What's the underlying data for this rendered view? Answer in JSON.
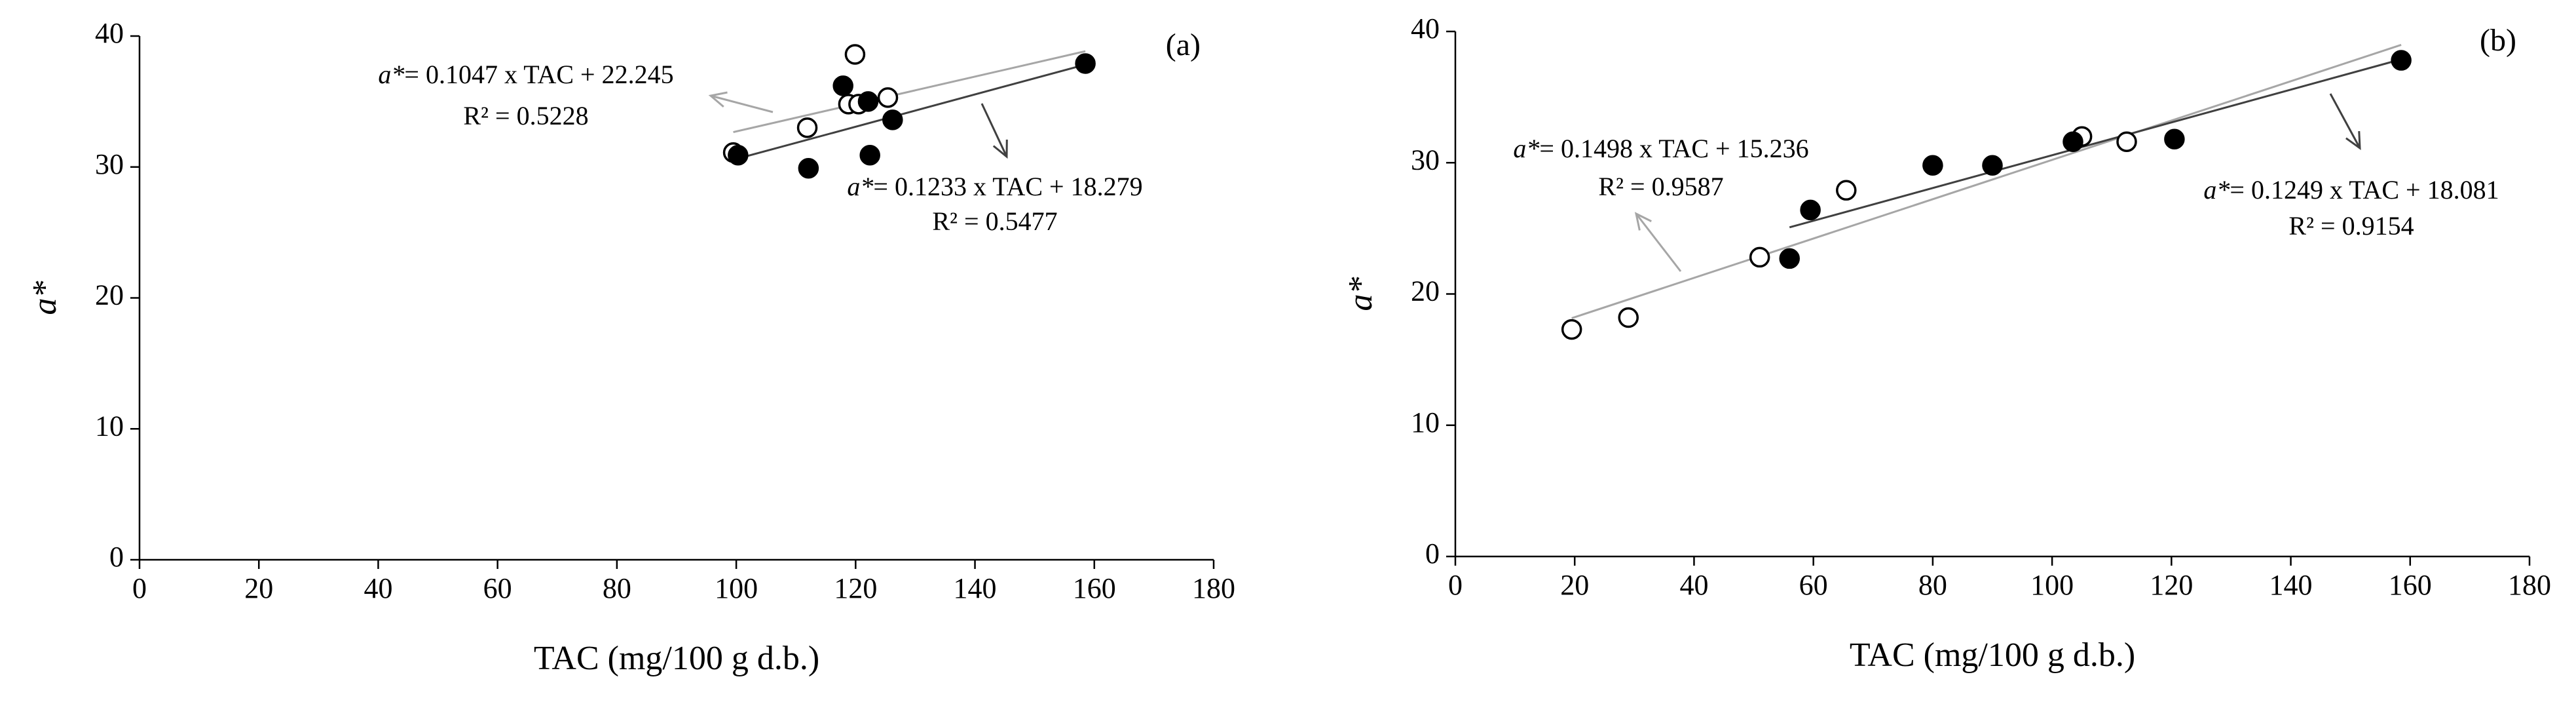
{
  "chart_data": [
    {
      "type": "scatter",
      "panel_label": "(a)",
      "xlabel": "TAC (mg/100 g d.b.)",
      "ylabel": "a*",
      "xlim": [
        0,
        180
      ],
      "xticks": [
        0,
        20,
        40,
        60,
        80,
        100,
        120,
        140,
        160,
        180
      ],
      "ylim": [
        0,
        40
      ],
      "yticks": [
        0,
        10,
        20,
        30,
        40
      ],
      "series": [
        {
          "marker": "open",
          "color": "#000000",
          "fit_color": "#a6a6a6",
          "x": [
            99.5,
            111.9,
            119.9,
            118.8,
            120.5,
            125.4
          ],
          "values": [
            31.1,
            33.0,
            38.6,
            34.8,
            34.8,
            35.3
          ],
          "fit": {
            "lhs": "a*",
            "eq": "= ",
            "slope": 0.1047,
            "mid": " x TAC + ",
            "intercept": 22.245,
            "r2_label": "R² = ",
            "r2": 0.5228
          }
        },
        {
          "marker": "filled",
          "color": "#000000",
          "fit_color": "#404040",
          "x": [
            100.3,
            112.1,
            117.9,
            122.1,
            122.4,
            126.2,
            158.5
          ],
          "values": [
            30.9,
            29.9,
            36.2,
            35.0,
            30.9,
            33.6,
            37.9
          ],
          "fit": {
            "lhs": "a*",
            "eq": "= ",
            "slope": 0.1233,
            "mid": " x TAC + ",
            "intercept": 18.279,
            "r2_label": "R² = ",
            "r2": 0.5477
          }
        }
      ]
    },
    {
      "type": "scatter",
      "panel_label": "(b)",
      "xlabel": "TAC (mg/100 g d.b.)",
      "ylabel": "a*",
      "xlim": [
        0,
        180
      ],
      "xticks": [
        0,
        20,
        40,
        60,
        80,
        100,
        120,
        140,
        160,
        180
      ],
      "ylim": [
        0,
        40
      ],
      "yticks": [
        0,
        10,
        20,
        30,
        40
      ],
      "series": [
        {
          "marker": "open",
          "color": "#000000",
          "fit_color": "#a6a6a6",
          "x": [
            19.5,
            29.0,
            51.0,
            65.5,
            105.0,
            112.5
          ],
          "values": [
            17.3,
            18.2,
            22.8,
            27.9,
            32.0,
            31.6
          ],
          "fit": {
            "lhs": "a*",
            "eq": "= ",
            "slope": 0.1498,
            "mid": " x TAC + ",
            "intercept": 15.236,
            "r2_label": "R² = ",
            "r2": 0.9587
          }
        },
        {
          "marker": "filled",
          "color": "#000000",
          "fit_color": "#404040",
          "x": [
            56.0,
            59.5,
            80.0,
            90.0,
            103.5,
            120.5,
            158.5
          ],
          "values": [
            22.7,
            26.4,
            29.8,
            29.8,
            31.6,
            31.8,
            37.8
          ],
          "fit": {
            "lhs": "a*",
            "eq": "= ",
            "slope": 0.1249,
            "mid": " x TAC + ",
            "intercept": 18.081,
            "r2_label": "R² = ",
            "r2": 0.9154
          }
        }
      ]
    }
  ]
}
